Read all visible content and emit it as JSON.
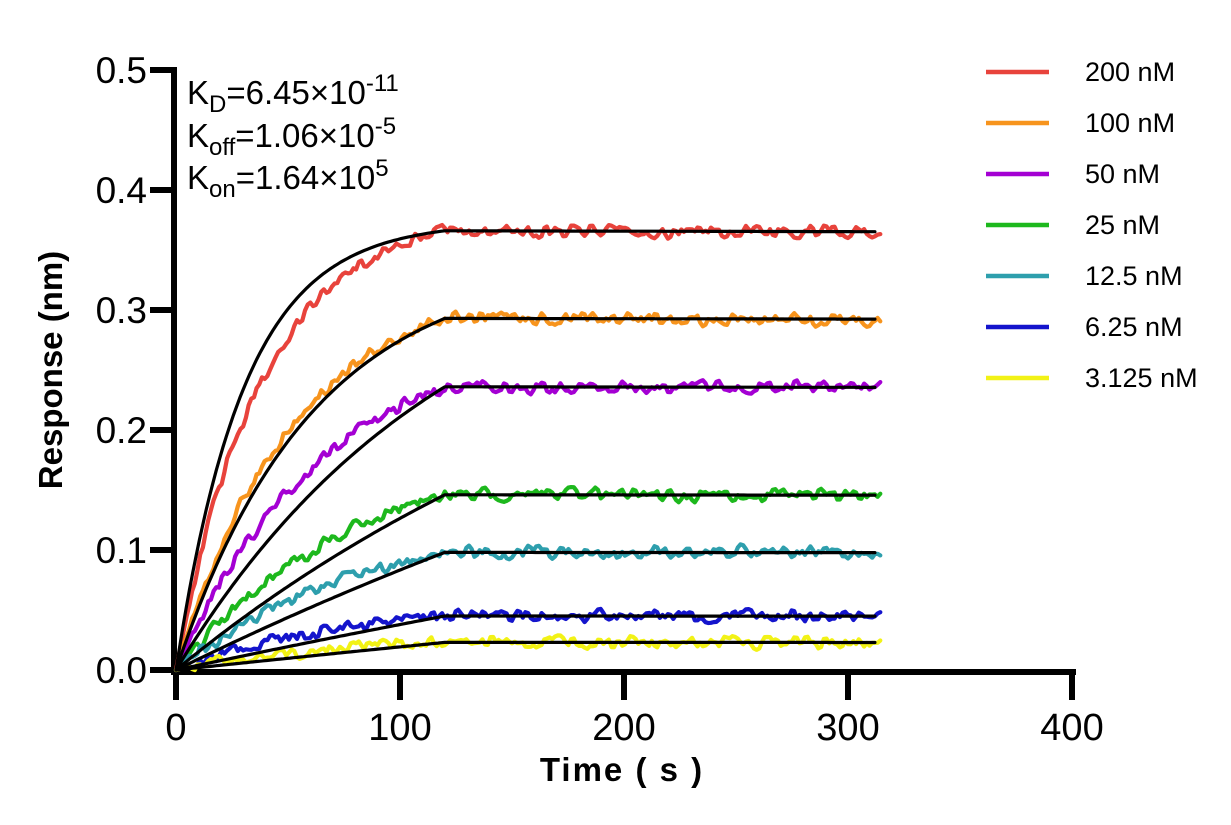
{
  "figure": {
    "background": "#ffffff",
    "annotation": {
      "lines": [
        {
          "base": "K",
          "sub": "D",
          "mid": "=6.45×10",
          "sup": "-11"
        },
        {
          "base": "K",
          "sub": "off",
          "mid": "=1.06×10",
          "sup": "-5"
        },
        {
          "base": "K",
          "sub": "on",
          "mid": "=1.64×10",
          "sup": "5"
        }
      ]
    }
  },
  "chart_data": {
    "type": "line",
    "title": "",
    "xlabel": "Time ( s )",
    "ylabel": "Response (nm)",
    "xlim": [
      0,
      400
    ],
    "ylim": [
      0,
      0.5
    ],
    "x_ticks": [
      0,
      100,
      200,
      300,
      400
    ],
    "y_ticks": [
      0.0,
      0.1,
      0.2,
      0.3,
      0.4,
      0.5
    ],
    "y_tick_labels": [
      "0.0",
      "0.1",
      "0.2",
      "0.3",
      "0.4",
      "0.5"
    ],
    "grid": false,
    "legend_position": "outside-right",
    "phases": {
      "association_start_s": 0,
      "association_end_s": 120,
      "trace_end_s": 315
    },
    "fit": {
      "color": "#000000",
      "KD_M": 6.45e-11,
      "koff_per_s": 1.06e-05,
      "kon_per_M_s": 164000.0
    },
    "series": [
      {
        "label": "200 nM",
        "concentration_nM": 200,
        "color": "#E8433C",
        "response_plateau_nm": 0.366
      },
      {
        "label": "100 nM",
        "concentration_nM": 100,
        "color": "#F7941D",
        "response_plateau_nm": 0.293
      },
      {
        "label": "50 nM",
        "concentration_nM": 50,
        "color": "#A400D3",
        "response_plateau_nm": 0.236
      },
      {
        "label": "25 nM",
        "concentration_nM": 25,
        "color": "#1DB81D",
        "response_plateau_nm": 0.146
      },
      {
        "label": "12.5 nM",
        "concentration_nM": 12.5,
        "color": "#2E9FAD",
        "response_plateau_nm": 0.098
      },
      {
        "label": "6.25 nM",
        "concentration_nM": 6.25,
        "color": "#1414CC",
        "response_plateau_nm": 0.045
      },
      {
        "label": "3.125 nM",
        "concentration_nM": 3.125,
        "color": "#F2F216",
        "response_plateau_nm": 0.023
      }
    ]
  }
}
